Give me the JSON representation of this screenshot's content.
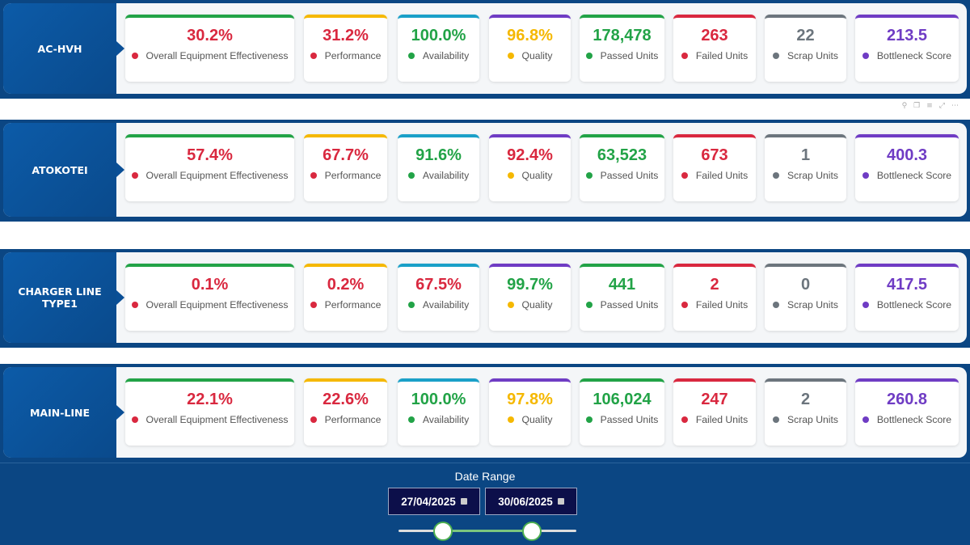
{
  "metric_colors": {
    "red": "#d9283f",
    "green": "#22a347",
    "yellow": "#f5b800",
    "purple": "#6f3cc4",
    "gray": "#6c757d",
    "teal": "#1aa0c8"
  },
  "metric_labels": [
    "Overall Equipment Effectiveness",
    "Performance",
    "Availability",
    "Quality",
    "Passed Units",
    "Failed Units",
    "Scrap Units",
    "Bottleneck Score"
  ],
  "lines": [
    {
      "name": "AC-HVH",
      "values": [
        "30.2%",
        "31.2%",
        "100.0%",
        "96.8%",
        "178,478",
        "263",
        "22",
        "213.5"
      ],
      "value_colors": [
        "red",
        "red",
        "green",
        "yellow",
        "green",
        "red",
        "gray",
        "purple"
      ]
    },
    {
      "name": "ATOKOTEI",
      "values": [
        "57.4%",
        "67.7%",
        "91.6%",
        "92.4%",
        "63,523",
        "673",
        "1",
        "400.3"
      ],
      "value_colors": [
        "red",
        "red",
        "green",
        "red",
        "green",
        "red",
        "gray",
        "purple"
      ]
    },
    {
      "name": "CHARGER LINE TYPE1",
      "values": [
        "0.1%",
        "0.2%",
        "67.5%",
        "99.7%",
        "441",
        "2",
        "0",
        "417.5"
      ],
      "value_colors": [
        "red",
        "red",
        "red",
        "green",
        "green",
        "red",
        "gray",
        "purple"
      ]
    },
    {
      "name": "MAIN-LINE",
      "values": [
        "22.1%",
        "22.6%",
        "100.0%",
        "97.8%",
        "106,024",
        "247",
        "2",
        "260.8"
      ],
      "value_colors": [
        "red",
        "red",
        "green",
        "yellow",
        "green",
        "red",
        "gray",
        "purple"
      ]
    }
  ],
  "metric_dot_colors": [
    "red",
    "red",
    "green",
    "yellow",
    "green",
    "red",
    "gray",
    "purple"
  ],
  "metric_bar_colors": [
    "green",
    "yellow",
    "teal",
    "purple",
    "green",
    "red",
    "gray",
    "purple"
  ],
  "visual_toolbar": [
    "pin-icon",
    "copy-icon",
    "filter-icon",
    "focus-icon",
    "more-icon"
  ],
  "date_range": {
    "title": "Date Range",
    "start": "27/04/2025",
    "end": "30/06/2025",
    "slider_start_fraction": 0.25,
    "slider_end_fraction": 0.75
  }
}
